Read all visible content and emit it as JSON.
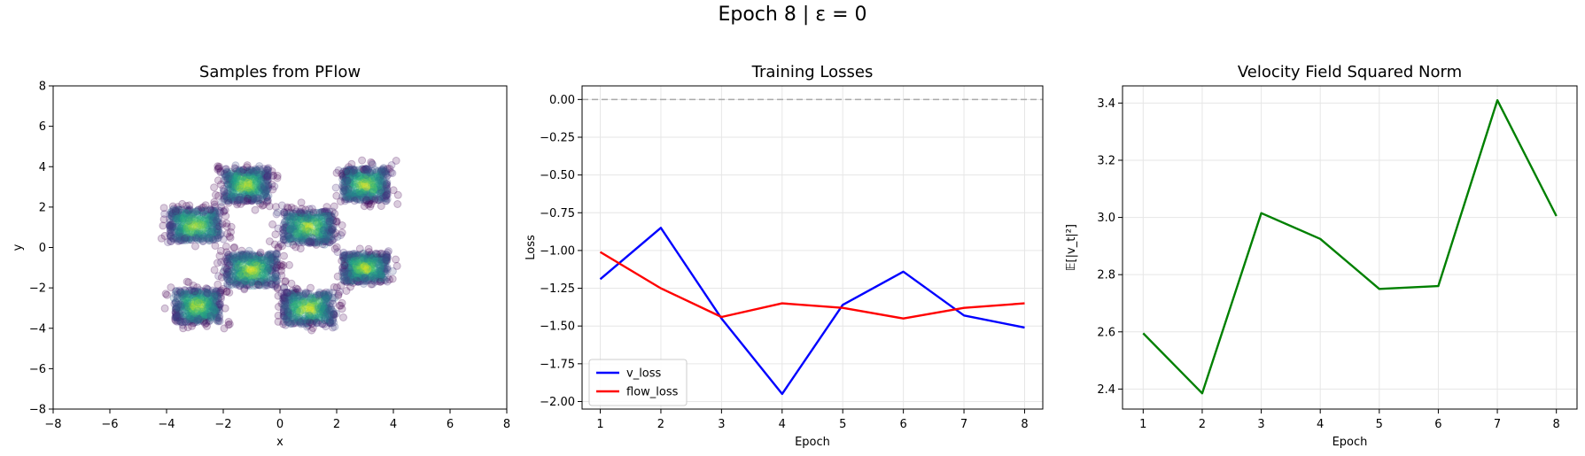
{
  "figure": {
    "suptitle": "Epoch 8 | ε = 0"
  },
  "chart_data": [
    {
      "type": "scatter",
      "title": "Samples from PFlow",
      "xlabel": "x",
      "ylabel": "y",
      "xlim": [
        -8,
        8
      ],
      "ylim": [
        -8,
        8
      ],
      "xticks": [
        -8,
        -6,
        -4,
        -2,
        0,
        2,
        4,
        6,
        8
      ],
      "yticks": [
        -8,
        -6,
        -4,
        -2,
        0,
        2,
        4,
        6,
        8
      ],
      "grid": false,
      "colormap": "viridis",
      "point_alpha": 0.2,
      "clusters": [
        {
          "center": [
            -1.2,
            3.1
          ],
          "extent": [
            1.6,
            1.6
          ]
        },
        {
          "center": [
            3.0,
            3.1
          ],
          "extent": [
            1.6,
            1.6
          ]
        },
        {
          "center": [
            -3.0,
            1.1
          ],
          "extent": [
            1.8,
            1.6
          ]
        },
        {
          "center": [
            1.0,
            1.0
          ],
          "extent": [
            1.8,
            1.6
          ]
        },
        {
          "center": [
            -1.0,
            -1.1
          ],
          "extent": [
            1.8,
            1.6
          ]
        },
        {
          "center": [
            3.0,
            -1.0
          ],
          "extent": [
            1.6,
            1.4
          ]
        },
        {
          "center": [
            -2.9,
            -2.9
          ],
          "extent": [
            1.6,
            1.6
          ]
        },
        {
          "center": [
            1.0,
            -3.0
          ],
          "extent": [
            1.8,
            1.6
          ]
        }
      ]
    },
    {
      "type": "line",
      "title": "Training Losses",
      "xlabel": "Epoch",
      "ylabel": "Loss",
      "xlim": [
        0.7,
        8.3
      ],
      "ylim": [
        -2.05,
        0.09
      ],
      "xticks": [
        1,
        2,
        3,
        4,
        5,
        6,
        7,
        8
      ],
      "yticks": [
        0.0,
        -0.25,
        -0.5,
        -0.75,
        -1.0,
        -1.25,
        -1.5,
        -1.75,
        -2.0
      ],
      "ytick_labels": [
        "0.00",
        "−0.25",
        "−0.50",
        "−0.75",
        "−1.00",
        "−1.25",
        "−1.50",
        "−1.75",
        "−2.00"
      ],
      "grid": true,
      "hline": {
        "y": 0,
        "color": "#aaaaaa",
        "style": "dashed"
      },
      "legend": "lower-left",
      "x": [
        1,
        2,
        3,
        4,
        5,
        6,
        7,
        8
      ],
      "series": [
        {
          "name": "v_loss",
          "color": "#0000ff",
          "values": [
            -1.19,
            -0.85,
            -1.45,
            -1.95,
            -1.36,
            -1.14,
            -1.43,
            -1.51
          ]
        },
        {
          "name": "flow_loss",
          "color": "#ff0000",
          "values": [
            -1.01,
            -1.25,
            -1.44,
            -1.35,
            -1.38,
            -1.45,
            -1.38,
            -1.35
          ]
        }
      ]
    },
    {
      "type": "line",
      "title": "Velocity Field Squared Norm",
      "xlabel": "Epoch",
      "ylabel": "𝔼[|v_t|²]",
      "xlim": [
        0.65,
        8.35
      ],
      "ylim": [
        2.33,
        3.46
      ],
      "xticks": [
        1,
        2,
        3,
        4,
        5,
        6,
        7,
        8
      ],
      "yticks": [
        2.4,
        2.6,
        2.8,
        3.0,
        3.2,
        3.4
      ],
      "ytick_labels": [
        "2.4",
        "2.6",
        "2.8",
        "3.0",
        "3.2",
        "3.4"
      ],
      "grid": true,
      "x": [
        1,
        2,
        3,
        4,
        5,
        6,
        7,
        8
      ],
      "series": [
        {
          "color": "#008000",
          "values": [
            2.595,
            2.385,
            3.015,
            2.925,
            2.75,
            2.76,
            3.41,
            3.005
          ]
        }
      ]
    }
  ]
}
